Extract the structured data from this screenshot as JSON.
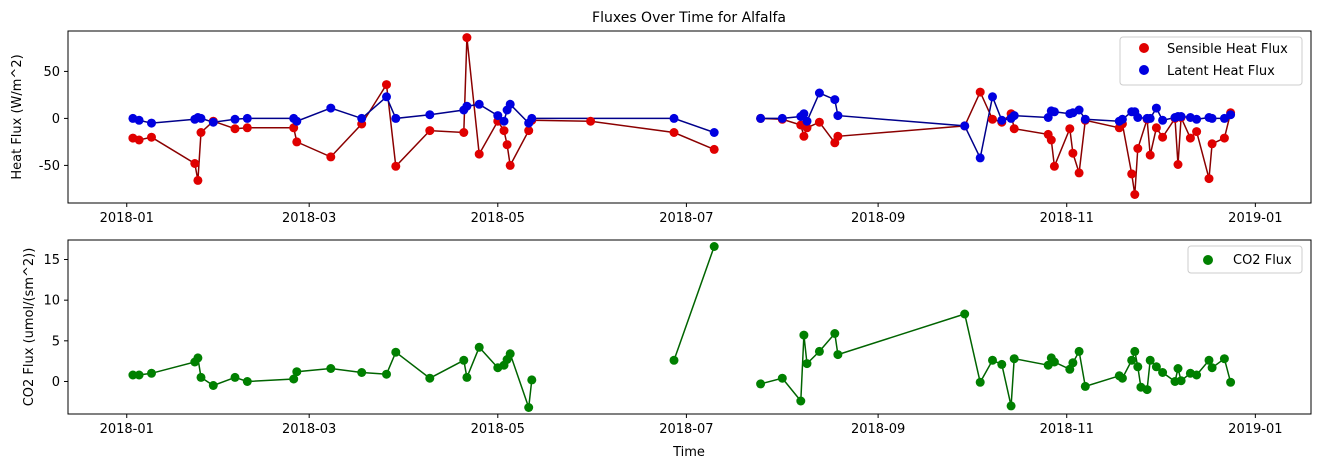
{
  "chart_data": [
    {
      "type": "line",
      "title": "Fluxes Over Time for Alfalfa",
      "xlabel": "",
      "ylabel": "Heat Flux (W/m^2)",
      "xlim": [
        "2017-12-13",
        "2019-01-19"
      ],
      "ylim": [
        -90,
        93
      ],
      "x_ticks": [
        "2018-01",
        "2018-03",
        "2018-05",
        "2018-07",
        "2018-09",
        "2018-11",
        "2019-01"
      ],
      "y_ticks": [
        -50,
        0,
        50
      ],
      "legend": "top-right",
      "grid": false,
      "segments": [
        [
          "2018-01-03",
          "2018-07-10"
        ],
        [
          "2018-07-25",
          "2018-12-29"
        ]
      ],
      "series": [
        {
          "name": "Sensible Heat Flux",
          "marker_color": "#e00000",
          "line_color": "#8b0000",
          "points": [
            [
              "2018-01-03",
              -21
            ],
            [
              "2018-01-05",
              -23
            ],
            [
              "2018-01-09",
              -20
            ],
            [
              "2018-01-23",
              -48
            ],
            [
              "2018-01-24",
              -66
            ],
            [
              "2018-01-25",
              -15
            ],
            [
              "2018-01-29",
              -3
            ],
            [
              "2018-02-05",
              -11
            ],
            [
              "2018-02-09",
              -10
            ],
            [
              "2018-02-24",
              -10
            ],
            [
              "2018-02-25",
              -25
            ],
            [
              "2018-03-08",
              -41
            ],
            [
              "2018-03-18",
              -6
            ],
            [
              "2018-03-26",
              36
            ],
            [
              "2018-03-29",
              -51
            ],
            [
              "2018-04-09",
              -13
            ],
            [
              "2018-04-20",
              -15
            ],
            [
              "2018-04-21",
              86
            ],
            [
              "2018-04-25",
              -38
            ],
            [
              "2018-05-01",
              -3
            ],
            [
              "2018-05-03",
              -13
            ],
            [
              "2018-05-04",
              -28
            ],
            [
              "2018-05-05",
              -50
            ],
            [
              "2018-05-11",
              -13
            ],
            [
              "2018-05-12",
              -2
            ],
            [
              "2018-05-31",
              -3
            ],
            [
              "2018-06-27",
              -15
            ],
            [
              "2018-07-10",
              -33
            ],
            [
              "2018-07-25",
              0
            ],
            [
              "2018-08-01",
              -1
            ],
            [
              "2018-08-07",
              -7
            ],
            [
              "2018-08-08",
              -19
            ],
            [
              "2018-08-09",
              -10
            ],
            [
              "2018-08-13",
              -4
            ],
            [
              "2018-08-18",
              -26
            ],
            [
              "2018-08-19",
              -19
            ],
            [
              "2018-09-29",
              -8
            ],
            [
              "2018-10-04",
              28
            ],
            [
              "2018-10-08",
              -1
            ],
            [
              "2018-10-11",
              -4
            ],
            [
              "2018-10-14",
              5
            ],
            [
              "2018-10-15",
              -11
            ],
            [
              "2018-10-26",
              -17
            ],
            [
              "2018-10-27",
              -23
            ],
            [
              "2018-10-28",
              -51
            ],
            [
              "2018-11-02",
              -11
            ],
            [
              "2018-11-03",
              -37
            ],
            [
              "2018-11-05",
              -58
            ],
            [
              "2018-11-07",
              -2
            ],
            [
              "2018-11-18",
              -10
            ],
            [
              "2018-11-19",
              -6
            ],
            [
              "2018-11-22",
              -59
            ],
            [
              "2018-11-23",
              -81
            ],
            [
              "2018-11-24",
              -32
            ],
            [
              "2018-11-27",
              -1
            ],
            [
              "2018-11-28",
              -39
            ],
            [
              "2018-11-30",
              -10
            ],
            [
              "2018-12-02",
              -20
            ],
            [
              "2018-12-06",
              0
            ],
            [
              "2018-12-07",
              -49
            ],
            [
              "2018-12-08",
              1
            ],
            [
              "2018-12-11",
              -21
            ],
            [
              "2018-12-13",
              -14
            ],
            [
              "2018-12-17",
              -64
            ],
            [
              "2018-12-18",
              -27
            ],
            [
              "2018-12-22",
              -21
            ],
            [
              "2018-12-24",
              6
            ]
          ]
        },
        {
          "name": "Latent Heat Flux",
          "marker_color": "#0000e0",
          "line_color": "#00008b",
          "points": [
            [
              "2018-01-03",
              0
            ],
            [
              "2018-01-05",
              -2
            ],
            [
              "2018-01-09",
              -5
            ],
            [
              "2018-01-23",
              -1
            ],
            [
              "2018-01-24",
              1
            ],
            [
              "2018-01-25",
              0
            ],
            [
              "2018-01-29",
              -4
            ],
            [
              "2018-02-05",
              -1
            ],
            [
              "2018-02-09",
              0
            ],
            [
              "2018-02-24",
              0
            ],
            [
              "2018-02-25",
              -3
            ],
            [
              "2018-03-08",
              11
            ],
            [
              "2018-03-18",
              0
            ],
            [
              "2018-03-26",
              23
            ],
            [
              "2018-03-29",
              0
            ],
            [
              "2018-04-09",
              4
            ],
            [
              "2018-04-20",
              9
            ],
            [
              "2018-04-21",
              13
            ],
            [
              "2018-04-25",
              15
            ],
            [
              "2018-05-01",
              3
            ],
            [
              "2018-05-03",
              -3
            ],
            [
              "2018-05-04",
              9
            ],
            [
              "2018-05-05",
              15
            ],
            [
              "2018-05-11",
              -5
            ],
            [
              "2018-05-12",
              0
            ],
            [
              "2018-06-27",
              0
            ],
            [
              "2018-07-10",
              -15
            ],
            [
              "2018-07-25",
              0
            ],
            [
              "2018-08-01",
              0
            ],
            [
              "2018-08-07",
              2
            ],
            [
              "2018-08-08",
              5
            ],
            [
              "2018-08-09",
              -3
            ],
            [
              "2018-08-13",
              27
            ],
            [
              "2018-08-18",
              20
            ],
            [
              "2018-08-19",
              3
            ],
            [
              "2018-09-29",
              -8
            ],
            [
              "2018-10-04",
              -42
            ],
            [
              "2018-10-08",
              23
            ],
            [
              "2018-10-11",
              -2
            ],
            [
              "2018-10-14",
              0
            ],
            [
              "2018-10-15",
              3
            ],
            [
              "2018-10-26",
              1
            ],
            [
              "2018-10-27",
              8
            ],
            [
              "2018-10-28",
              7
            ],
            [
              "2018-11-02",
              5
            ],
            [
              "2018-11-03",
              6
            ],
            [
              "2018-11-05",
              9
            ],
            [
              "2018-11-07",
              -1
            ],
            [
              "2018-11-18",
              -3
            ],
            [
              "2018-11-19",
              -1
            ],
            [
              "2018-11-22",
              7
            ],
            [
              "2018-11-23",
              7
            ],
            [
              "2018-11-24",
              1
            ],
            [
              "2018-11-27",
              0
            ],
            [
              "2018-11-28",
              0
            ],
            [
              "2018-11-30",
              11
            ],
            [
              "2018-12-02",
              -2
            ],
            [
              "2018-12-06",
              1
            ],
            [
              "2018-12-07",
              2
            ],
            [
              "2018-12-08",
              2
            ],
            [
              "2018-12-11",
              1
            ],
            [
              "2018-12-13",
              -1
            ],
            [
              "2018-12-17",
              1
            ],
            [
              "2018-12-18",
              0
            ],
            [
              "2018-12-22",
              0
            ],
            [
              "2018-12-24",
              4
            ]
          ]
        }
      ]
    },
    {
      "type": "line",
      "title": "",
      "xlabel": "Time",
      "ylabel": "CO2 Flux (umol/(sm^2))",
      "xlim": [
        "2017-12-13",
        "2019-01-19"
      ],
      "ylim": [
        -4,
        17.4
      ],
      "x_ticks": [
        "2018-01",
        "2018-03",
        "2018-05",
        "2018-07",
        "2018-09",
        "2018-11",
        "2019-01"
      ],
      "y_ticks": [
        0,
        5,
        10,
        15
      ],
      "legend": "top-right",
      "grid": false,
      "segments": [
        [
          "2018-01-03",
          "2018-05-12"
        ],
        [
          "2018-06-27",
          "2018-07-10"
        ],
        [
          "2018-07-25",
          "2018-12-29"
        ]
      ],
      "series": [
        {
          "name": "CO2 Flux",
          "marker_color": "#008000",
          "line_color": "#006400",
          "points": [
            [
              "2018-01-03",
              0.8
            ],
            [
              "2018-01-05",
              0.8
            ],
            [
              "2018-01-09",
              1.0
            ],
            [
              "2018-01-23",
              2.4
            ],
            [
              "2018-01-24",
              2.9
            ],
            [
              "2018-01-25",
              0.5
            ],
            [
              "2018-01-29",
              -0.5
            ],
            [
              "2018-02-05",
              0.5
            ],
            [
              "2018-02-09",
              0.0
            ],
            [
              "2018-02-24",
              0.3
            ],
            [
              "2018-02-25",
              1.2
            ],
            [
              "2018-03-08",
              1.6
            ],
            [
              "2018-03-18",
              1.1
            ],
            [
              "2018-03-26",
              0.9
            ],
            [
              "2018-03-29",
              3.6
            ],
            [
              "2018-04-09",
              0.4
            ],
            [
              "2018-04-20",
              2.6
            ],
            [
              "2018-04-21",
              0.5
            ],
            [
              "2018-04-25",
              4.2
            ],
            [
              "2018-05-01",
              1.7
            ],
            [
              "2018-05-03",
              2.0
            ],
            [
              "2018-05-04",
              2.7
            ],
            [
              "2018-05-05",
              3.4
            ],
            [
              "2018-05-11",
              -3.2
            ],
            [
              "2018-05-12",
              0.2
            ],
            [
              "2018-06-27",
              2.6
            ],
            [
              "2018-07-10",
              16.6
            ],
            [
              "2018-07-25",
              -0.3
            ],
            [
              "2018-08-01",
              0.4
            ],
            [
              "2018-08-07",
              -2.4
            ],
            [
              "2018-08-08",
              5.7
            ],
            [
              "2018-08-09",
              2.2
            ],
            [
              "2018-08-13",
              3.7
            ],
            [
              "2018-08-18",
              5.9
            ],
            [
              "2018-08-19",
              3.3
            ],
            [
              "2018-09-29",
              8.3
            ],
            [
              "2018-10-04",
              -0.1
            ],
            [
              "2018-10-08",
              2.6
            ],
            [
              "2018-10-11",
              2.1
            ],
            [
              "2018-10-14",
              -3.0
            ],
            [
              "2018-10-15",
              2.8
            ],
            [
              "2018-10-26",
              2.0
            ],
            [
              "2018-10-27",
              2.9
            ],
            [
              "2018-10-28",
              2.4
            ],
            [
              "2018-11-02",
              1.5
            ],
            [
              "2018-11-03",
              2.3
            ],
            [
              "2018-11-05",
              3.7
            ],
            [
              "2018-11-07",
              -0.6
            ],
            [
              "2018-11-18",
              0.7
            ],
            [
              "2018-11-19",
              0.4
            ],
            [
              "2018-11-22",
              2.6
            ],
            [
              "2018-11-23",
              3.7
            ],
            [
              "2018-11-24",
              1.8
            ],
            [
              "2018-11-25",
              -0.7
            ],
            [
              "2018-11-27",
              -1.0
            ],
            [
              "2018-11-28",
              2.6
            ],
            [
              "2018-11-30",
              1.8
            ],
            [
              "2018-12-02",
              1.1
            ],
            [
              "2018-12-06",
              0.0
            ],
            [
              "2018-12-07",
              1.6
            ],
            [
              "2018-12-08",
              0.1
            ],
            [
              "2018-12-11",
              1.0
            ],
            [
              "2018-12-13",
              0.8
            ],
            [
              "2018-12-17",
              2.6
            ],
            [
              "2018-12-18",
              1.7
            ],
            [
              "2018-12-22",
              2.8
            ],
            [
              "2018-12-24",
              -0.1
            ]
          ]
        }
      ]
    }
  ]
}
